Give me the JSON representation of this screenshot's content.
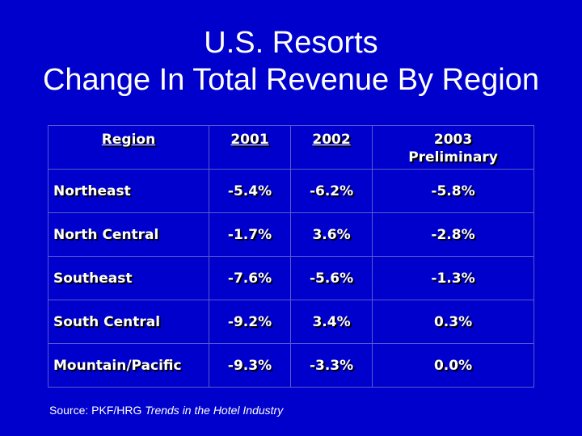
{
  "title": {
    "line1": "U.S. Resorts",
    "line2": "Change In Total Revenue By Region"
  },
  "table": {
    "headers": [
      "Region",
      "2001",
      "2002",
      "2003 Preliminary"
    ],
    "rows": [
      {
        "region": "Northeast",
        "y2001": "-5.4%",
        "y2002": "-6.2%",
        "y2003": "-5.8%"
      },
      {
        "region": "North Central",
        "y2001": "-1.7%",
        "y2002": "3.6%",
        "y2003": "-2.8%"
      },
      {
        "region": "Southeast",
        "y2001": "-7.6%",
        "y2002": "-5.6%",
        "y2003": "-1.3%"
      },
      {
        "region": "South Central",
        "y2001": "-9.2%",
        "y2002": "3.4%",
        "y2003": "0.3%"
      },
      {
        "region": "Mountain/Pacific",
        "y2001": "-9.3%",
        "y2002": "-3.3%",
        "y2003": "0.0%"
      }
    ]
  },
  "source": {
    "prefix": "Source: PKF/HRG ",
    "publication": "Trends in the Hotel Industry"
  },
  "colors": {
    "background": "#0000cc",
    "text": "#ffffff"
  }
}
